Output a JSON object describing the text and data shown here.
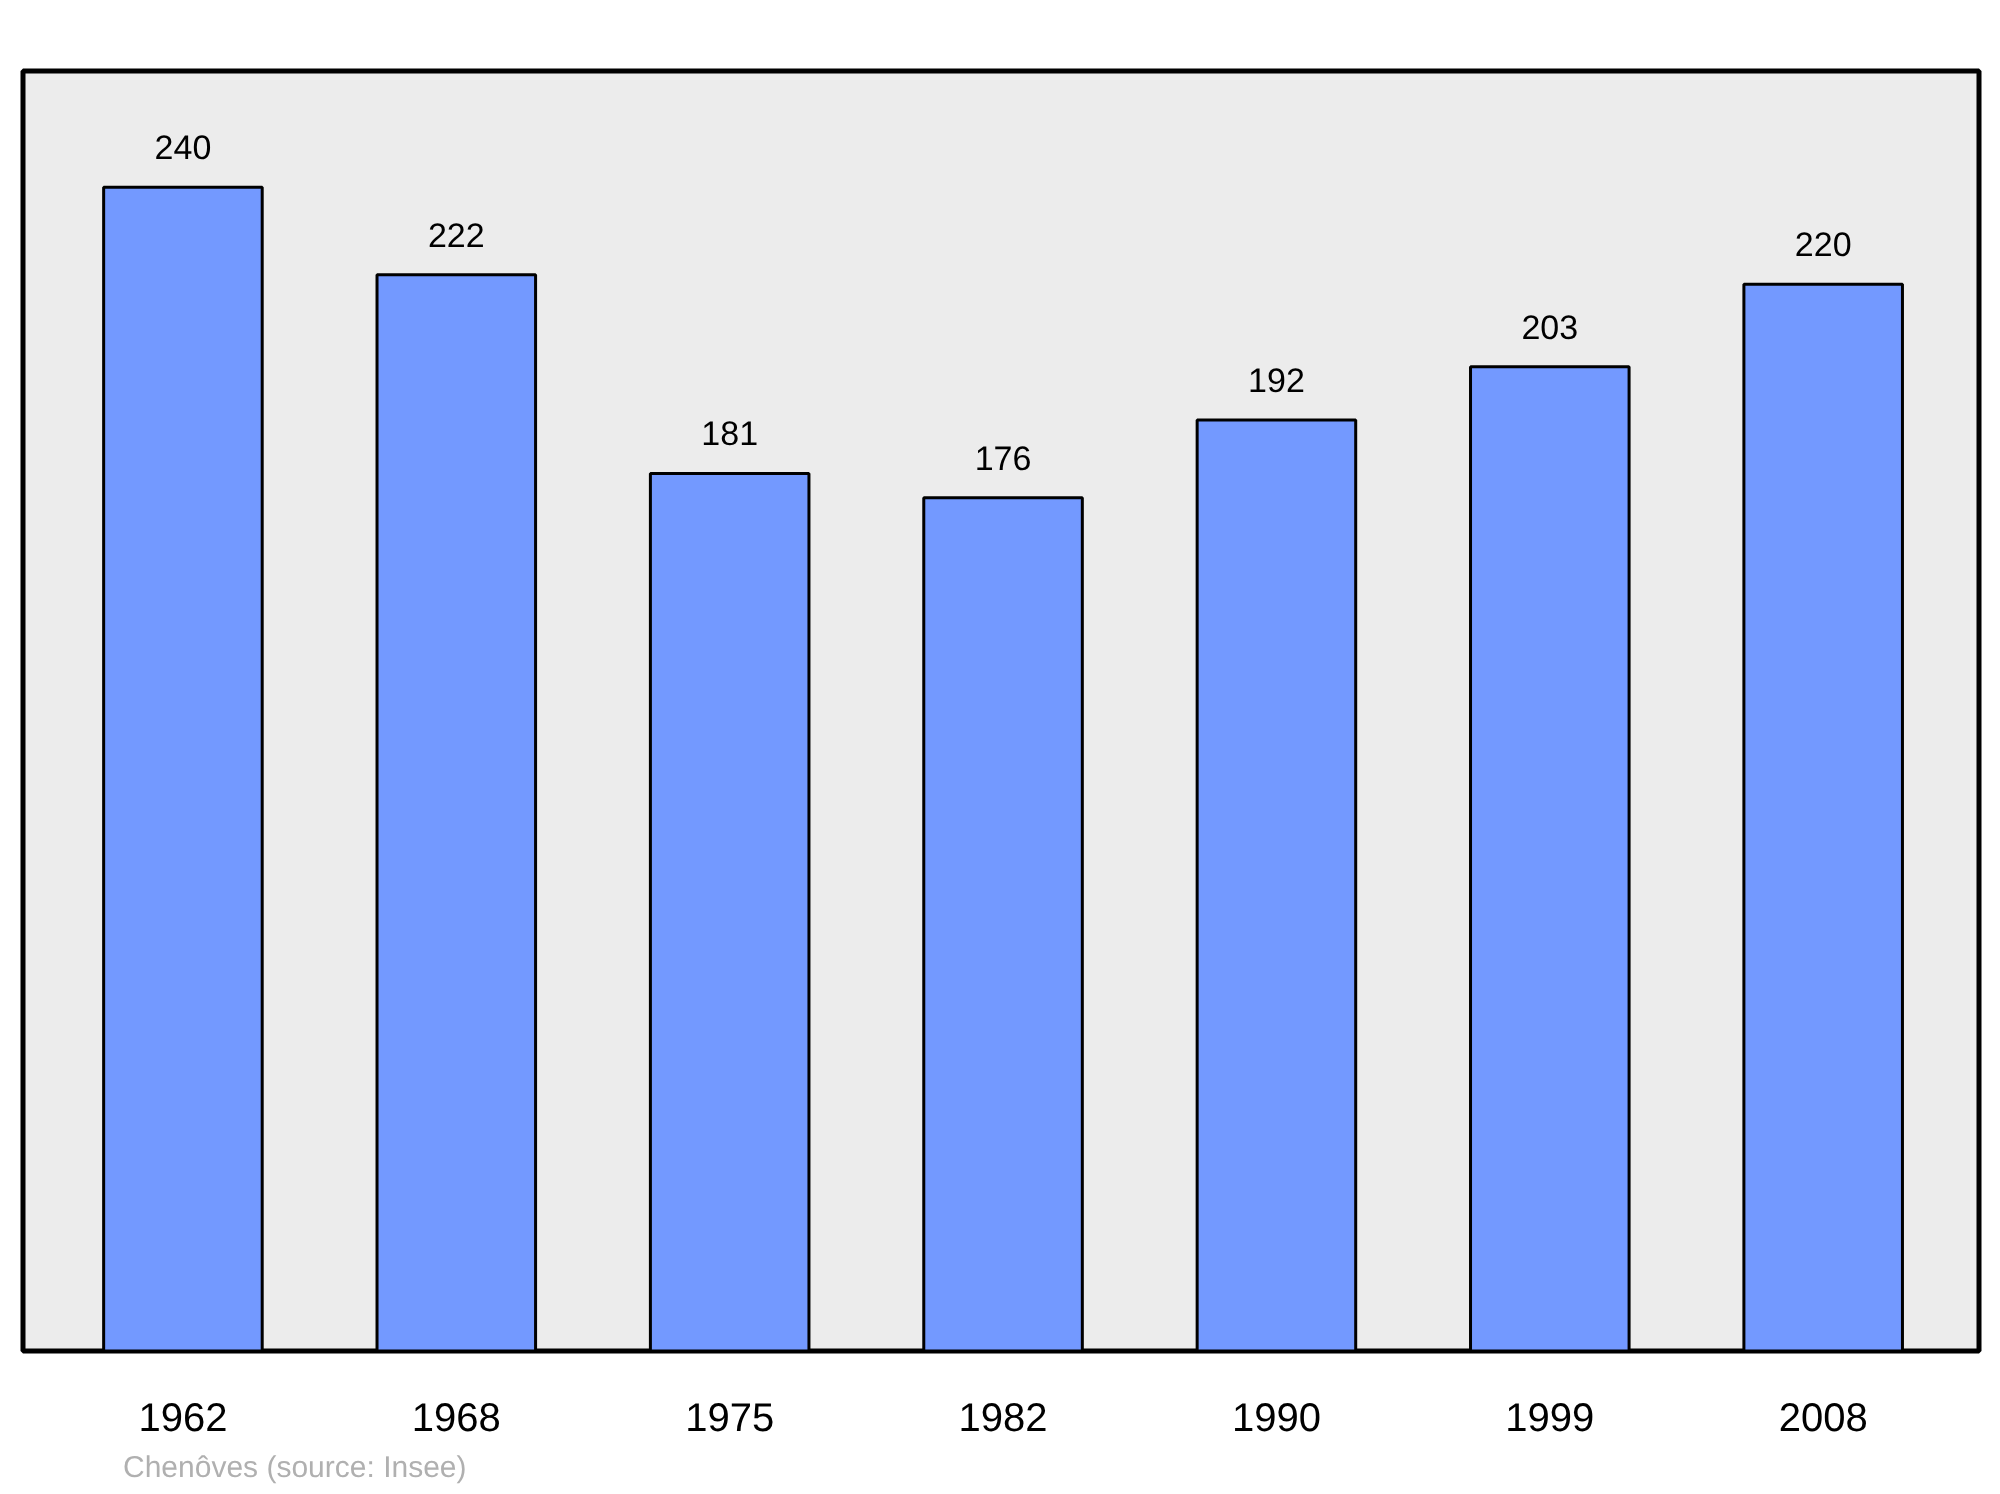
{
  "chart_data": {
    "type": "bar",
    "categories": [
      "1962",
      "1968",
      "1975",
      "1982",
      "1990",
      "1999",
      "2008"
    ],
    "values": [
      240,
      222,
      181,
      176,
      192,
      203,
      220
    ],
    "color": "#7399ff",
    "data_labels": true,
    "ylim": [
      0,
      264
    ],
    "annotations": [
      "Chenôves    (source: Insee)"
    ]
  }
}
